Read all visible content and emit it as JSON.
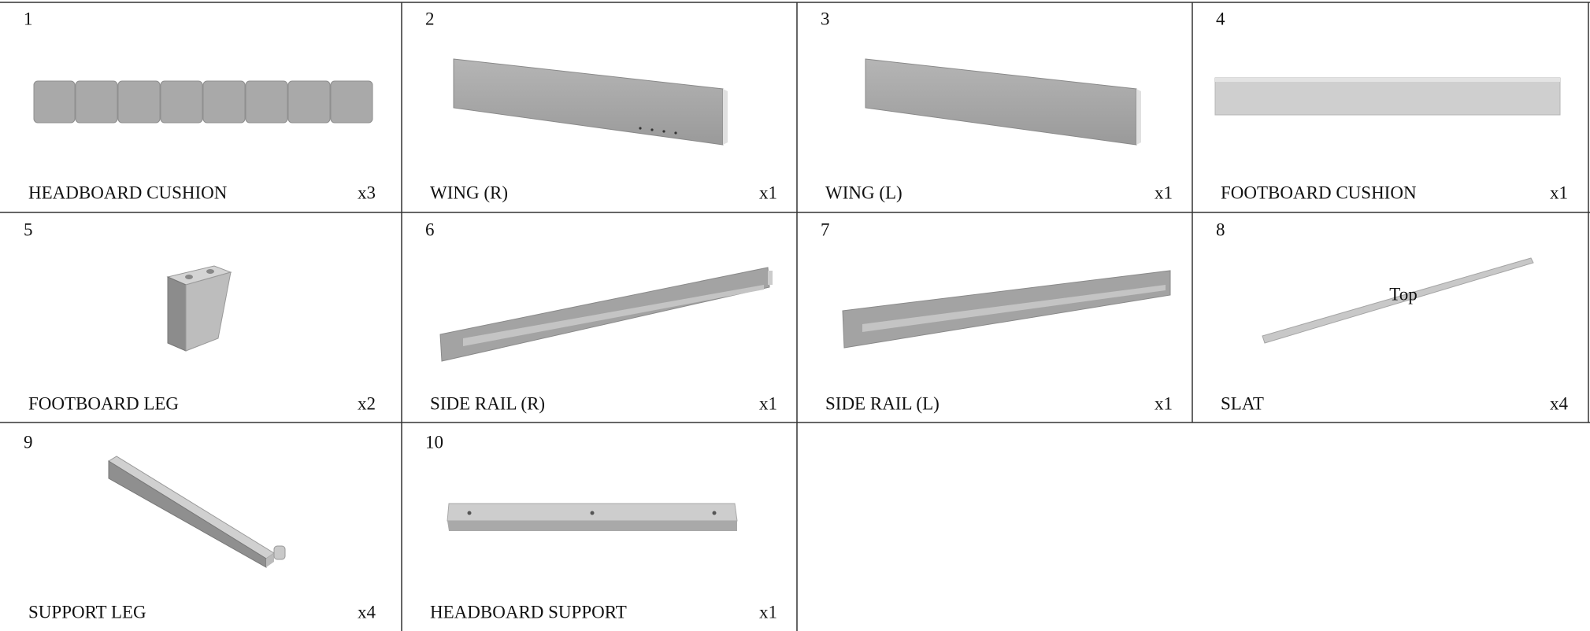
{
  "parts": [
    {
      "number": 1,
      "name": "HEADBOARD CUSHION",
      "quantity": "x3"
    },
    {
      "number": 2,
      "name": "WING (R)",
      "quantity": "x1"
    },
    {
      "number": 3,
      "name": "WING (L)",
      "quantity": "x1"
    },
    {
      "number": 4,
      "name": "FOOTBOARD CUSHION",
      "quantity": "x1"
    },
    {
      "number": 5,
      "name": "FOOTBOARD LEG",
      "quantity": "x2"
    },
    {
      "number": 6,
      "name": "SIDE RAIL (R)",
      "quantity": "x1"
    },
    {
      "number": 7,
      "name": "SIDE RAIL (L)",
      "quantity": "x1"
    },
    {
      "number": 8,
      "name": "SLAT",
      "quantity": "x4"
    },
    {
      "number": 9,
      "name": "SUPPORT LEG",
      "quantity": "x4"
    },
    {
      "number": 10,
      "name": "HEADBOARD SUPPORT",
      "quantity": "x1"
    }
  ],
  "annotations": {
    "slat_top": "Top"
  }
}
